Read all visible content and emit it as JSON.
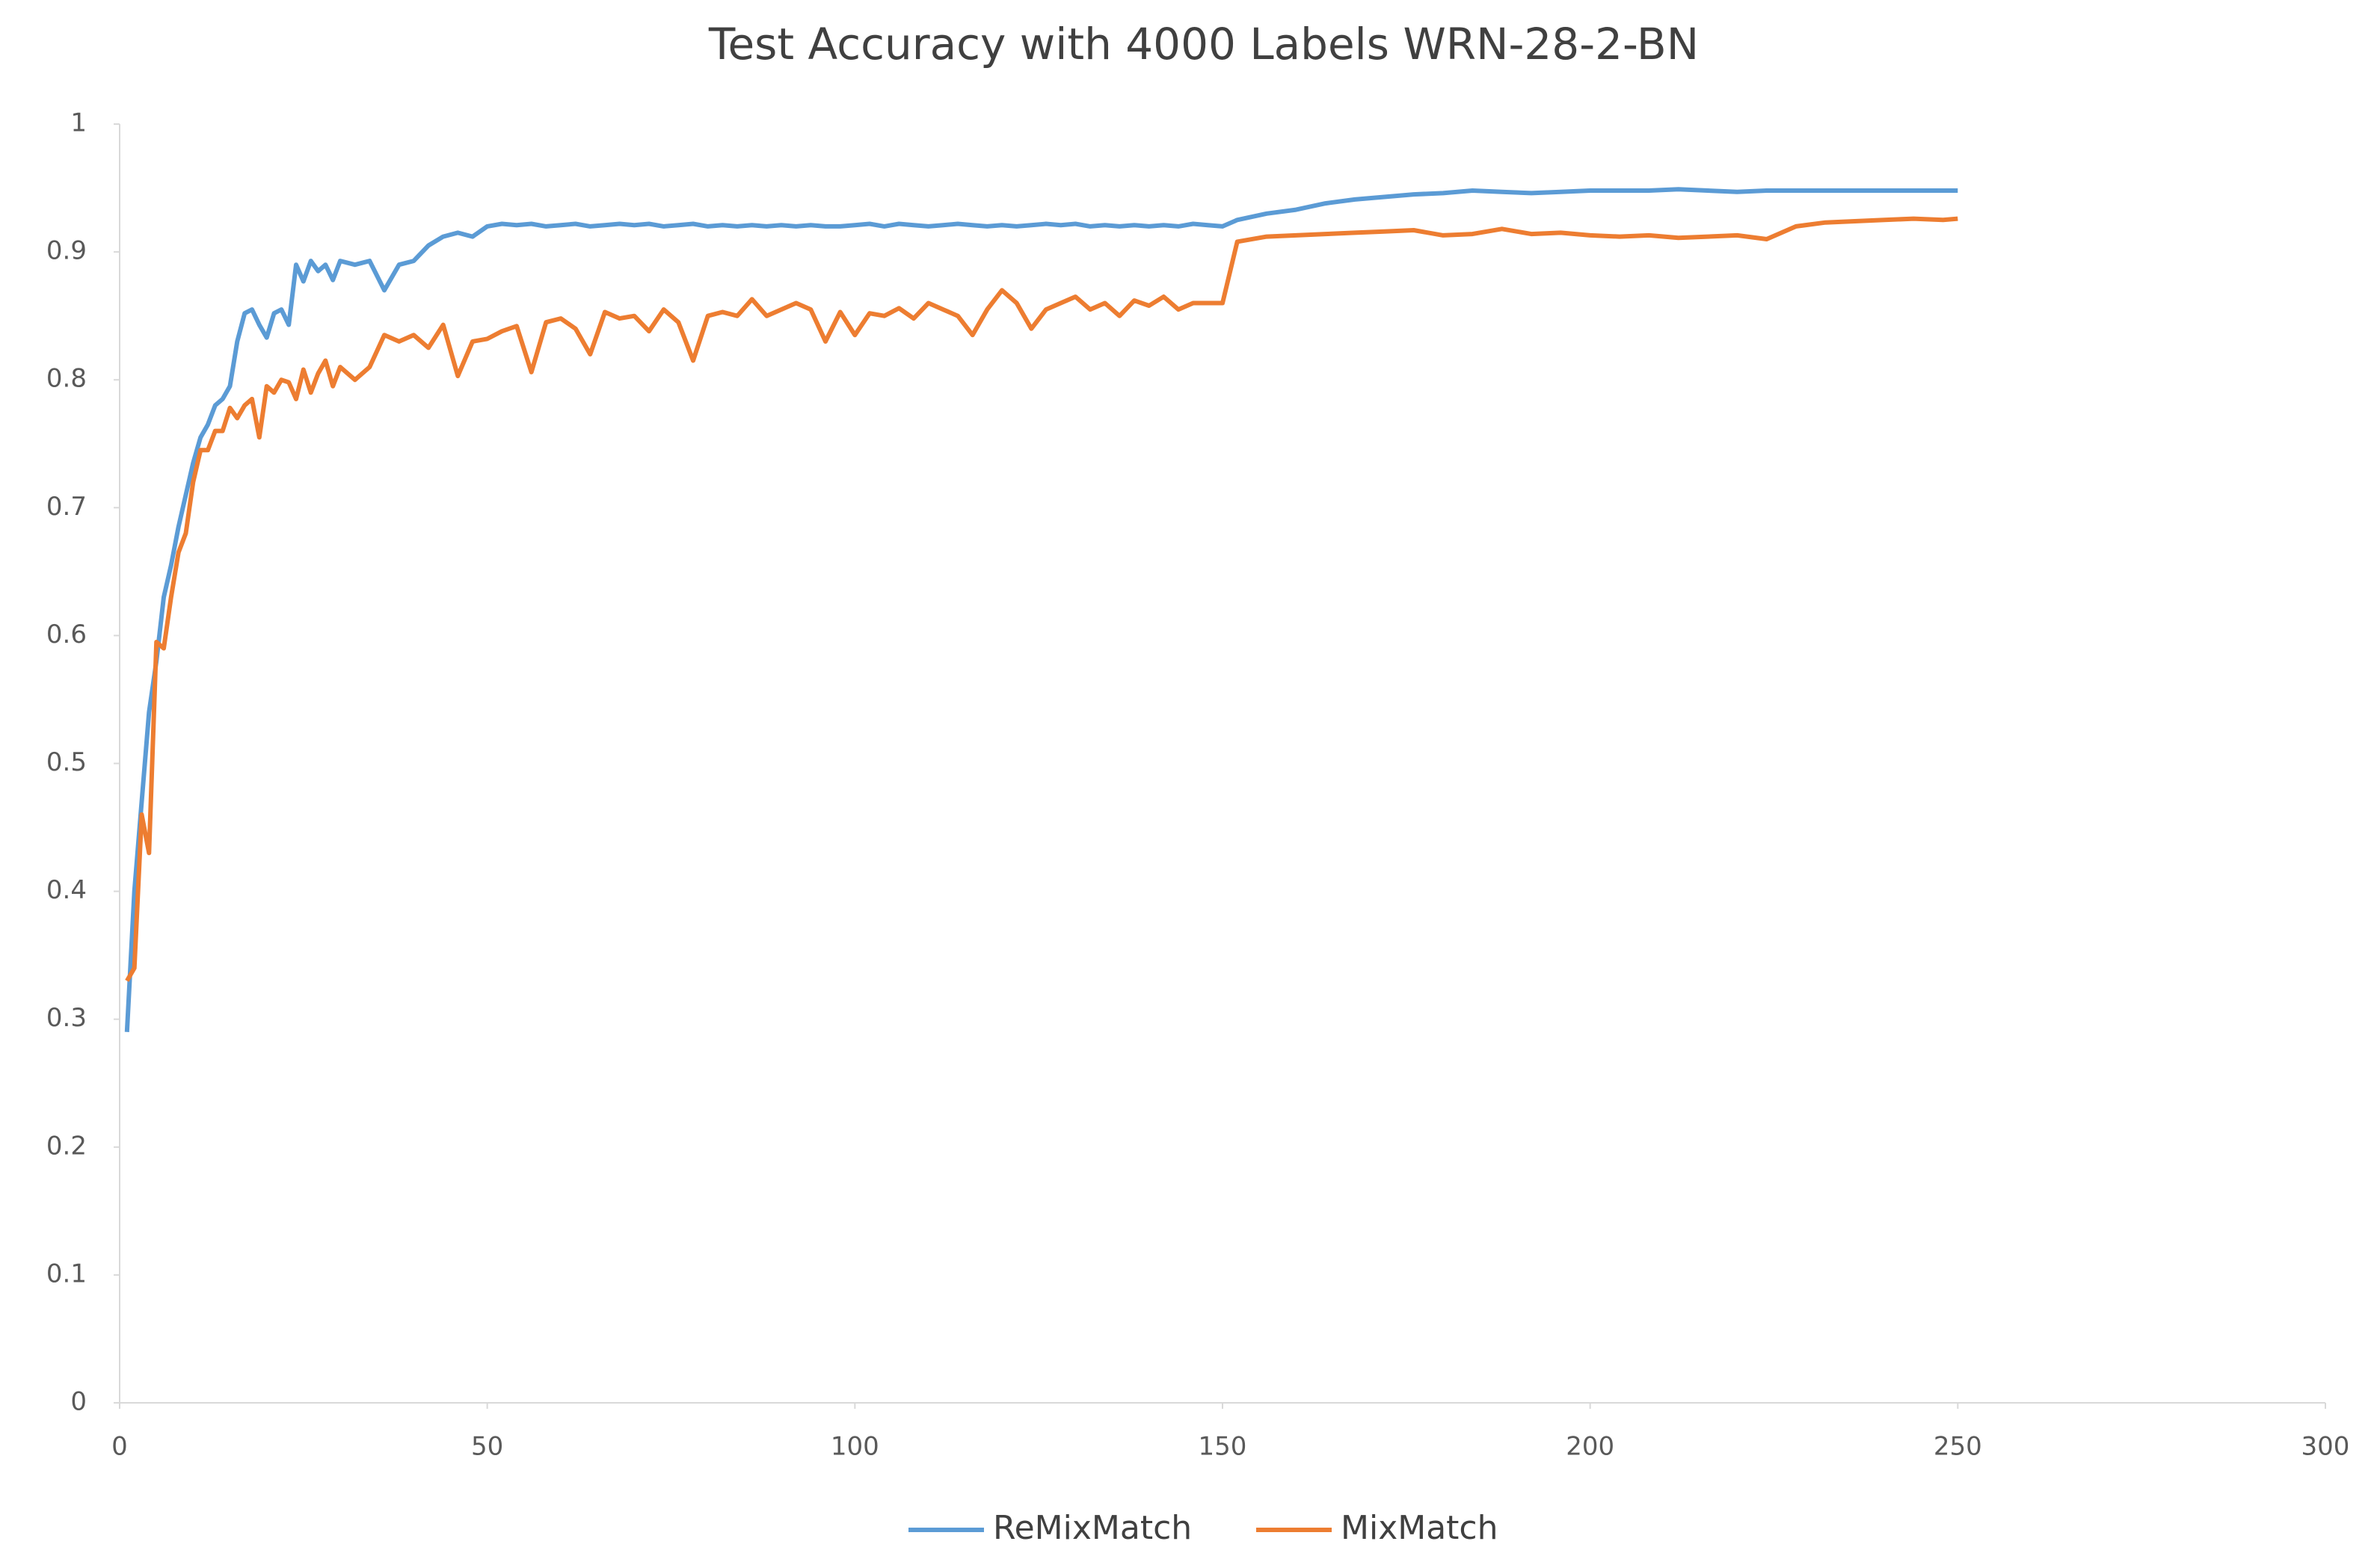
{
  "chart_data": {
    "type": "line",
    "title": "Test Accuracy with 4000 Labels WRN-28-2-BN",
    "x": [
      1,
      2,
      3,
      4,
      5,
      6,
      7,
      8,
      9,
      10,
      11,
      12,
      13,
      14,
      15,
      16,
      17,
      18,
      19,
      20,
      21,
      22,
      23,
      24,
      25,
      26,
      27,
      28,
      29,
      30,
      32,
      34,
      36,
      38,
      40,
      42,
      44,
      46,
      48,
      50,
      52,
      54,
      56,
      58,
      60,
      62,
      64,
      66,
      68,
      70,
      72,
      74,
      76,
      78,
      80,
      82,
      84,
      86,
      88,
      90,
      92,
      94,
      96,
      98,
      100,
      102,
      104,
      106,
      108,
      110,
      112,
      114,
      116,
      118,
      120,
      122,
      124,
      126,
      128,
      130,
      132,
      134,
      136,
      138,
      140,
      142,
      144,
      146,
      148,
      150,
      152,
      156,
      160,
      164,
      168,
      172,
      176,
      180,
      184,
      188,
      192,
      196,
      200,
      204,
      208,
      212,
      216,
      220,
      224,
      228,
      232,
      236,
      240,
      244,
      248,
      250
    ],
    "series": [
      {
        "name": "ReMixMatch",
        "color": "#5b9bd5",
        "values": [
          0.29,
          0.4,
          0.47,
          0.54,
          0.58,
          0.63,
          0.655,
          0.685,
          0.71,
          0.735,
          0.755,
          0.765,
          0.78,
          0.785,
          0.795,
          0.83,
          0.852,
          0.855,
          0.843,
          0.833,
          0.852,
          0.855,
          0.843,
          0.89,
          0.877,
          0.893,
          0.885,
          0.89,
          0.878,
          0.893,
          0.89,
          0.893,
          0.87,
          0.89,
          0.893,
          0.905,
          0.912,
          0.915,
          0.912,
          0.92,
          0.922,
          0.921,
          0.922,
          0.92,
          0.921,
          0.922,
          0.92,
          0.921,
          0.922,
          0.921,
          0.922,
          0.92,
          0.921,
          0.922,
          0.92,
          0.921,
          0.92,
          0.921,
          0.92,
          0.921,
          0.92,
          0.921,
          0.92,
          0.92,
          0.921,
          0.922,
          0.92,
          0.922,
          0.921,
          0.92,
          0.921,
          0.922,
          0.921,
          0.92,
          0.921,
          0.92,
          0.921,
          0.922,
          0.921,
          0.922,
          0.92,
          0.921,
          0.92,
          0.921,
          0.92,
          0.921,
          0.92,
          0.922,
          0.921,
          0.92,
          0.925,
          0.93,
          0.933,
          0.938,
          0.941,
          0.943,
          0.945,
          0.946,
          0.948,
          0.947,
          0.946,
          0.947,
          0.948,
          0.948,
          0.948,
          0.949,
          0.948,
          0.947,
          0.948,
          0.948,
          0.948,
          0.948,
          0.948,
          0.948,
          0.948,
          0.948
        ]
      },
      {
        "name": "MixMatch",
        "color": "#ed7d31",
        "values": [
          0.33,
          0.34,
          0.46,
          0.43,
          0.595,
          0.59,
          0.63,
          0.665,
          0.68,
          0.72,
          0.745,
          0.745,
          0.76,
          0.76,
          0.778,
          0.77,
          0.78,
          0.785,
          0.755,
          0.795,
          0.79,
          0.8,
          0.798,
          0.785,
          0.808,
          0.79,
          0.805,
          0.815,
          0.795,
          0.81,
          0.8,
          0.81,
          0.835,
          0.83,
          0.835,
          0.825,
          0.843,
          0.803,
          0.83,
          0.832,
          0.838,
          0.842,
          0.806,
          0.845,
          0.848,
          0.84,
          0.82,
          0.853,
          0.848,
          0.85,
          0.838,
          0.855,
          0.845,
          0.815,
          0.85,
          0.853,
          0.85,
          0.863,
          0.85,
          0.855,
          0.86,
          0.855,
          0.83,
          0.853,
          0.835,
          0.852,
          0.85,
          0.856,
          0.848,
          0.86,
          0.855,
          0.85,
          0.835,
          0.855,
          0.87,
          0.86,
          0.84,
          0.855,
          0.86,
          0.865,
          0.855,
          0.86,
          0.85,
          0.862,
          0.858,
          0.865,
          0.855,
          0.86,
          0.86,
          0.86,
          0.908,
          0.912,
          0.913,
          0.914,
          0.915,
          0.916,
          0.917,
          0.913,
          0.914,
          0.918,
          0.914,
          0.915,
          0.913,
          0.912,
          0.913,
          0.911,
          0.912,
          0.913,
          0.91,
          0.92,
          0.923,
          0.924,
          0.925,
          0.926,
          0.925,
          0.926
        ]
      }
    ],
    "xlim": [
      0,
      300
    ],
    "xticks": [
      0,
      50,
      100,
      150,
      200,
      250,
      300
    ],
    "ylim": [
      0,
      1
    ],
    "yticks": [
      0,
      0.1,
      0.2,
      0.3,
      0.4,
      0.5,
      0.6,
      0.7,
      0.8,
      0.9,
      1
    ],
    "legend": "bottom"
  }
}
